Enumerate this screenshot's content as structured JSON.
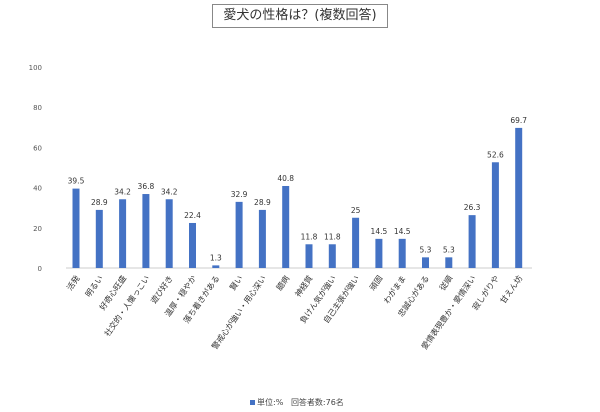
{
  "chart_data": {
    "type": "bar",
    "title": "愛犬の性格は？(複数回答)",
    "categories": [
      "活発",
      "明るい",
      "好奇心旺盛",
      "社交的・人懐っこい",
      "遊び好き",
      "温厚・穏やか",
      "落ち着きがある",
      "賢い",
      "警戒心が強い・用心深い",
      "臆病",
      "神経質",
      "負けん気が強い",
      "自己主張が強い",
      "頑固",
      "わがまま",
      "忠誠心がある",
      "従順",
      "愛情表現豊か・愛情深い",
      "寂しがりや",
      "甘えん坊"
    ],
    "values": [
      39.5,
      28.9,
      34.2,
      36.8,
      34.2,
      22.4,
      1.3,
      32.9,
      28.9,
      40.8,
      11.8,
      11.8,
      25,
      14.5,
      14.5,
      5.3,
      5.3,
      26.3,
      52.6,
      69.7
    ],
    "ylim": [
      0,
      100
    ],
    "yticks": [
      0,
      20,
      40,
      60,
      80,
      100
    ],
    "grid": false,
    "legend": {
      "series": "単位:%",
      "note": "回答者数:76名",
      "placement": "bottom"
    },
    "color": "#4472C4"
  }
}
